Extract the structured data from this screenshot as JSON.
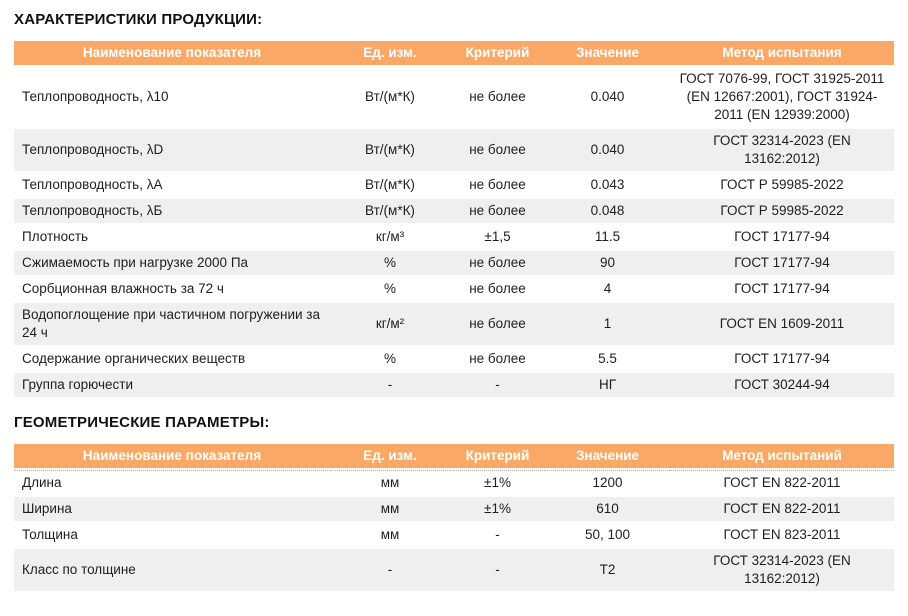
{
  "colors": {
    "header_bg": "#F9A865",
    "header_text": "#FFFFFF",
    "stripe_bg": "#EFEFEF",
    "body_text": "#1E1E1E"
  },
  "section1": {
    "title": "ХАРАКТЕРИСТИКИ ПРОДУКЦИИ:"
  },
  "section2": {
    "title": "ГЕОМЕТРИЧЕСКИЕ ПАРАМЕТРЫ:"
  },
  "table1": {
    "headers": [
      "Наименование показателя",
      "Ед. изм.",
      "Критерий",
      "Значение",
      "Метод испытания"
    ],
    "rows": [
      {
        "name": "Теплопроводность, λ10",
        "unit": "Вт/(м*К)",
        "criterion": "не более",
        "value": "0.040",
        "method": "ГОСТ 7076-99, ГОСТ 31925-2011 (EN 12667:2001), ГОСТ 31924-2011 (EN 12939:2000)"
      },
      {
        "name": "Теплопроводность, λD",
        "unit": "Вт/(м*К)",
        "criterion": "не более",
        "value": "0.040",
        "method": "ГОСТ 32314-2023 (EN 13162:2012)"
      },
      {
        "name": "Теплопроводность, λА",
        "unit": "Вт/(м*К)",
        "criterion": "не более",
        "value": "0.043",
        "method": "ГОСТ Р 59985-2022"
      },
      {
        "name": "Теплопроводность, λБ",
        "unit": "Вт/(м*К)",
        "criterion": "не более",
        "value": "0.048",
        "method": "ГОСТ Р 59985-2022"
      },
      {
        "name": "Плотность",
        "unit": "кг/м³",
        "criterion": "±1,5",
        "value": "11.5",
        "method": "ГОСТ 17177-94"
      },
      {
        "name": "Сжимаемость при нагрузке 2000 Па",
        "unit": "%",
        "criterion": "не более",
        "value": "90",
        "method": "ГОСТ 17177-94"
      },
      {
        "name": "Сорбционная влажность за 72 ч",
        "unit": "%",
        "criterion": "не более",
        "value": "4",
        "method": "ГОСТ 17177-94"
      },
      {
        "name": "Водопоглощение при частичном погружении за 24 ч",
        "unit": "кг/м²",
        "criterion": "не более",
        "value": "1",
        "method": "ГОСТ EN 1609-2011"
      },
      {
        "name": "Содержание органических веществ",
        "unit": "%",
        "criterion": "не более",
        "value": "5.5",
        "method": "ГОСТ 17177-94"
      },
      {
        "name": "Группа горючести",
        "unit": "-",
        "criterion": "-",
        "value": "НГ",
        "method": "ГОСТ 30244-94"
      }
    ]
  },
  "table2": {
    "headers": [
      "Наименование показателя",
      "Ед. изм.",
      "Критерий",
      "Значение",
      "Метод испытаний"
    ],
    "rows": [
      {
        "name": "Длина",
        "unit": "мм",
        "criterion": "±1%",
        "value": "1200",
        "method": "ГОСТ EN 822-2011"
      },
      {
        "name": "Ширина",
        "unit": "мм",
        "criterion": "±1%",
        "value": "610",
        "method": "ГОСТ EN 822-2011"
      },
      {
        "name": "Толщина",
        "unit": "мм",
        "criterion": "-",
        "value": "50, 100",
        "method": "ГОСТ EN 823-2011"
      },
      {
        "name": "Класс по толщине",
        "unit": "-",
        "criterion": "-",
        "value": "Т2",
        "method": "ГОСТ 32314-2023 (EN 13162:2012)"
      }
    ]
  }
}
